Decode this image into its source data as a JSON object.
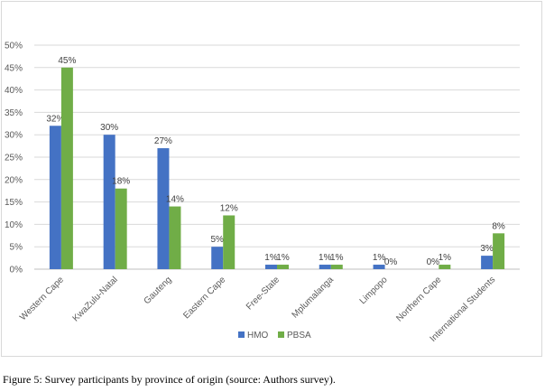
{
  "chart_data": {
    "type": "bar",
    "categories": [
      "Western Cape",
      "KwaZulu-Natal",
      "Gauteng",
      "Eastern Cape",
      "Free-State",
      "Mplumalanga",
      "Limpopo",
      "Northern Cape",
      "International Students"
    ],
    "series": [
      {
        "name": "HMO",
        "color": "#4472c4",
        "values": [
          32,
          30,
          27,
          5,
          1,
          1,
          1,
          0,
          3
        ],
        "labels": [
          "32%",
          "30%",
          "27%",
          "5%",
          "1%",
          "1%",
          "1%",
          "0%",
          "3%"
        ]
      },
      {
        "name": "PBSA",
        "color": "#70ad47",
        "values": [
          45,
          18,
          14,
          12,
          1,
          1,
          0,
          1,
          8
        ],
        "labels": [
          "45%",
          "18%",
          "14%",
          "12%",
          "1%",
          "1%",
          "0%",
          "1%",
          "8%"
        ]
      }
    ],
    "ylim": [
      0,
      50
    ],
    "yticks": [
      "0%",
      "5%",
      "10%",
      "15%",
      "20%",
      "25%",
      "30%",
      "35%",
      "40%",
      "45%",
      "50%"
    ],
    "grid": true,
    "legend": "bottom-center"
  },
  "caption": "Figure 5: Survey participants by province of origin (source: Authors survey)."
}
